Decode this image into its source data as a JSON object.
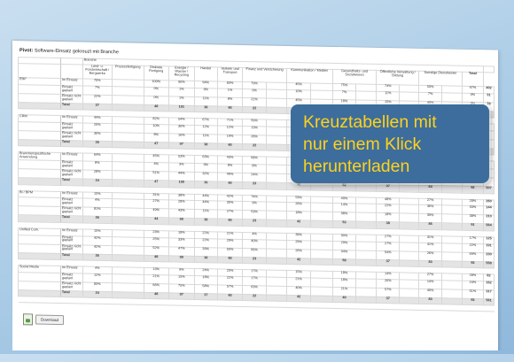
{
  "page": {
    "title_bold": "Pivot:",
    "title_rest": "Software-Einsatz gekreuzt mit Branche"
  },
  "table": {
    "branche_label": "Branche",
    "total_label": "Total",
    "columns": [
      "Land- u. Forstwirtschaft / Bergwerke",
      "Prozessfertigung",
      "Diskrete Fertigung",
      "Energie / Wasser / Recycling",
      "Handel",
      "Verkehr und Transport",
      "Finanz und Versicherung",
      "Kommunikation / Medien",
      "Gesundheits- und Sozialwesen",
      "Öffentliche Verwaltung / Bildung",
      "Sonstige Dienstleister"
    ],
    "groups": [
      {
        "name": "ERP",
        "rows": [
          {
            "label": "Im Einsatz",
            "cells": [
              "70%",
              "",
              "100%",
              "90%",
              "94%",
              "83%",
              "79%",
              "",
              "45%",
              "",
              "75%",
              "",
              "74%",
              "",
              "53%",
              "",
              "97%"
            ],
            "total": "402"
          },
          {
            "label": "Einsatz geplant",
            "cells": [
              "7%",
              "",
              "0%",
              "1%",
              "3%",
              "1%",
              "0%",
              "",
              "10%",
              "",
              "7%",
              "",
              "11%",
              "",
              "7%",
              "",
              "0%"
            ],
            "total": "31"
          },
          {
            "label": "Einsatz nicht geplant",
            "cells": [
              "22%",
              "",
              "0%",
              "1%",
              "11%",
              "8%",
              "22%",
              "",
              "45%",
              "",
              "18%",
              "",
              "15%",
              "",
              "40%",
              "",
              "3%"
            ],
            "total": "78"
          }
        ],
        "totals": [
          "27",
          "",
          "48",
          "101",
          "18",
          "60",
          "22",
          "",
          "",
          "",
          "",
          "",
          "",
          "",
          "",
          "",
          ""
        ],
        "total": ""
      },
      {
        "name": "CRM",
        "rows": [
          {
            "label": "Im Einsatz",
            "cells": [
              "44%",
              "",
              "82%",
              "54%",
              "67%",
              "71%",
              "59%",
              "",
              "",
              "",
              "",
              "",
              "",
              "",
              "",
              "",
              ""
            ],
            "total": ""
          },
          {
            "label": "Einsatz geplant",
            "cells": [
              "20%",
              "",
              "10%",
              "30%",
              "12%",
              "12%",
              "13%",
              "",
              "",
              "",
              "",
              "",
              "",
              "",
              "",
              "",
              ""
            ],
            "total": ""
          },
          {
            "label": "Einsatz nicht geplant",
            "cells": [
              "30%",
              "",
              "8%",
              "16%",
              "11%",
              "19%",
              "28%",
              "",
              "",
              "",
              "",
              "",
              "",
              "",
              "",
              "",
              ""
            ],
            "total": ""
          }
        ],
        "totals": [
          "25",
          "",
          "47",
          "97",
          "18",
          "60",
          "22",
          "",
          "",
          "",
          "",
          "",
          "",
          "",
          "",
          "",
          ""
        ],
        "total": ""
      },
      {
        "name": "Branchenspezifische Anwendung",
        "rows": [
          {
            "label": "Im Einsatz",
            "cells": [
              "64%",
              "",
              "45%",
              "53%",
              "63%",
              "43%",
              "68%",
              "",
              "",
              "",
              "",
              "",
              "",
              "",
              "",
              "",
              ""
            ],
            "total": ""
          },
          {
            "label": "Einsatz geplant",
            "cells": [
              "8%",
              "",
              "4%",
              "3%",
              "3%",
              "8%",
              "8%",
              "",
              "",
              "",
              "",
              "",
              "",
              "",
              "",
              "",
              ""
            ],
            "total": ""
          },
          {
            "label": "Einsatz nicht geplant",
            "cells": [
              "28%",
              "",
              "51%",
              "44%",
              "32%",
              "49%",
              "24%",
              "",
              "",
              "",
              "",
              "",
              "",
              "",
              "",
              "",
              ""
            ],
            "total": ""
          }
        ],
        "totals": [
          "24",
          "",
          "47",
          "100",
          "19",
          "60",
          "23",
          "",
          "42",
          "",
          "52",
          "",
          "37",
          "",
          "64",
          "",
          "92"
        ],
        "total": "507"
      },
      {
        "name": "BI / BPM",
        "rows": [
          {
            "label": "Im Einsatz",
            "cells": [
              "15%",
              "",
              "31%",
              "38%",
              "44%",
              "42%",
              "74%",
              "",
              "53%",
              "",
              "49%",
              "",
              "48%",
              "",
              "27%",
              "",
              "28%"
            ],
            "total": "260"
          },
          {
            "label": "Einsatz geplant",
            "cells": [
              "4%",
              "",
              "27%",
              "28%",
              "44%",
              "30%",
              "9%",
              "",
              "26%",
              "",
              "14%",
              "",
              "22%",
              "",
              "36%",
              "",
              "33%"
            ],
            "total": "144"
          },
          {
            "label": "Einsatz nicht geplant",
            "cells": [
              "81%",
              "",
              "49%",
              "43%",
              "11%",
              "27%",
              "53%",
              "",
              "18%",
              "",
              "38%",
              "",
              "18%",
              "",
              "39%",
              "",
              "38%"
            ],
            "total": "210"
          }
        ],
        "totals": [
          "26",
          "",
          "44",
          "90",
          "18",
          "60",
          "23",
          "",
          "42",
          "",
          "53",
          "",
          "38",
          "",
          "85",
          "",
          "91"
        ],
        "total": "564"
      },
      {
        "name": "Unified Com.",
        "rows": [
          {
            "label": "Im Einsatz",
            "cells": [
              "15%",
              "",
              "23%",
              "18%",
              "22%",
              "21%",
              "4%",
              "",
              "39%",
              "",
              "30%",
              "",
              "27%",
              "",
              "31%",
              "",
              "17%"
            ],
            "total": "125"
          },
          {
            "label": "Einsatz geplant",
            "cells": [
              "42%",
              "",
              "25%",
              "33%",
              "22%",
              "29%",
              "40%",
              "",
              "29%",
              "",
              "29%",
              "",
              "27%",
              "",
              "41%",
              "",
              "22%"
            ],
            "total": "191"
          },
          {
            "label": "Einsatz nicht geplant",
            "cells": [
              "42%",
              "",
              "52%",
              "47%",
              "33%",
              "50%",
              "66%",
              "",
              "26%",
              "",
              "34%",
              "",
              "54%",
              "",
              "26%",
              "",
              "69%"
            ],
            "total": "230"
          }
        ],
        "totals": [
          "26",
          "",
          "48",
          "99",
          "18",
          "60",
          "23",
          "",
          "42",
          "",
          "58",
          "",
          "37",
          "",
          "83",
          "",
          "93"
        ],
        "total": "558"
      },
      {
        "name": "Social Media",
        "rows": [
          {
            "label": "Im Einsatz",
            "cells": [
              "4%",
              "",
              "13%",
              "9%",
              "24%",
              "20%",
              "17%",
              "",
              "15%",
              "",
              "18%",
              "",
              "14%",
              "",
              "27%",
              "",
              "28%"
            ],
            "total": "82"
          },
          {
            "label": "Einsatz geplant",
            "cells": [
              "12%",
              "",
              "21%",
              "15%",
              "18%",
              "22%",
              "17%",
              "",
              "21%",
              "",
              "18%",
              "",
              "26%",
              "",
              "14%",
              "",
              "24%"
            ],
            "total": "162"
          },
          {
            "label": "Einsatz nicht geplant",
            "cells": [
              "83%",
              "",
              "66%",
              "75%",
              "58%",
              "57%",
              "63%",
              "",
              "40%",
              "",
              "21%",
              "",
              "57%",
              "",
              "40%",
              "",
              "51%"
            ],
            "total": "317"
          }
        ],
        "totals": [
          "24",
          "",
          "48",
          "97",
          "17",
          "60",
          "22",
          "",
          "42",
          "",
          "40",
          "",
          "37",
          "",
          "83",
          "",
          "93"
        ],
        "total": "561"
      }
    ]
  },
  "download": {
    "label": "Download"
  },
  "callout": {
    "lines": [
      "Kreuztabellen mit",
      "nur einem Klick",
      "herunterladen"
    ]
  },
  "colors": {
    "callout_bg": "#3d6d9c",
    "callout_text": "#ffd21c",
    "background": "#a9cbe6"
  }
}
